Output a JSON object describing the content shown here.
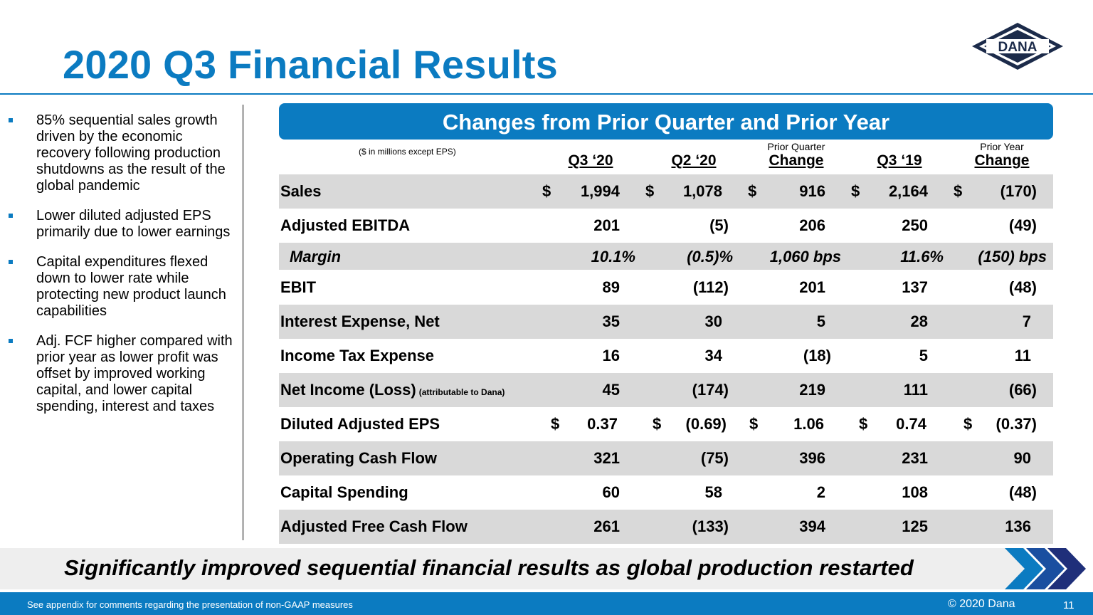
{
  "title": "2020 Q3 Financial Results",
  "logo_text": "DANA",
  "bullets": [
    "85% sequential sales growth driven by the economic recovery following production shutdowns as the result of the global pandemic",
    "Lower diluted adjusted EPS primarily due to lower earnings",
    "Capital expenditures flexed down to lower rate while protecting new product launch capabilities",
    "Adj. FCF higher compared with prior year as lower profit was offset by improved working capital, and lower capital spending, interest and taxes"
  ],
  "table": {
    "banner": "Changes from Prior Quarter and Prior Year",
    "units_note": "($ in millions except EPS)",
    "columns": [
      {
        "pre": "",
        "label": "Q3 ‘20"
      },
      {
        "pre": "",
        "label": "Q2 ‘20"
      },
      {
        "pre": "Prior Quarter",
        "label": "Change"
      },
      {
        "pre": "",
        "label": "Q3 ‘19"
      },
      {
        "pre": "Prior Year",
        "label": "Change"
      }
    ],
    "rows": [
      {
        "label": "Sales",
        "values": [
          "1,994",
          "1,078",
          "916",
          "2,164",
          "(170)"
        ],
        "dollar": true
      },
      {
        "label": "Adjusted EBITDA",
        "values": [
          "201",
          "(5)",
          "206",
          "250",
          "(49)"
        ]
      },
      {
        "label": "Margin",
        "values": [
          "10.1%",
          "(0.5)%",
          "1,060 bps",
          "11.6%",
          "(150) bps"
        ]
      },
      {
        "label": "EBIT",
        "values": [
          "89",
          "(112)",
          "201",
          "137",
          "(48)"
        ]
      },
      {
        "label": "Interest Expense, Net",
        "values": [
          "35",
          "30",
          "5",
          "28",
          "7"
        ]
      },
      {
        "label": "Income Tax Expense",
        "values": [
          "16",
          "34",
          "(18)",
          "5",
          "11"
        ]
      },
      {
        "label": "Net Income (Loss)",
        "suffix": "(attributable to Dana)",
        "values": [
          "45",
          "(174)",
          "219",
          "111",
          "(66)"
        ]
      },
      {
        "label": "Diluted Adjusted EPS",
        "values": [
          "0.37",
          "(0.69)",
          "1.06",
          "0.74",
          "(0.37)"
        ],
        "dollar": true
      },
      {
        "label": "Operating Cash Flow",
        "values": [
          "321",
          "(75)",
          "396",
          "231",
          "90"
        ]
      },
      {
        "label": "Capital Spending",
        "values": [
          "60",
          "58",
          "2",
          "108",
          "(48)"
        ]
      },
      {
        "label": "Adjusted Free Cash Flow",
        "values": [
          "261",
          "(133)",
          "394",
          "125",
          "136"
        ]
      }
    ],
    "dollar_sign": "$"
  },
  "tagline": "Significantly improved sequential financial results as global production restarted",
  "footer": {
    "note": "See appendix for comments regarding the presentation of non-GAAP measures",
    "copyright": "© 2020 Dana",
    "page": "11"
  },
  "colors": {
    "brand_blue": "#0b7bc1",
    "row_shade": "#d9d9d9",
    "logo_navy": "#1c2b4a"
  }
}
